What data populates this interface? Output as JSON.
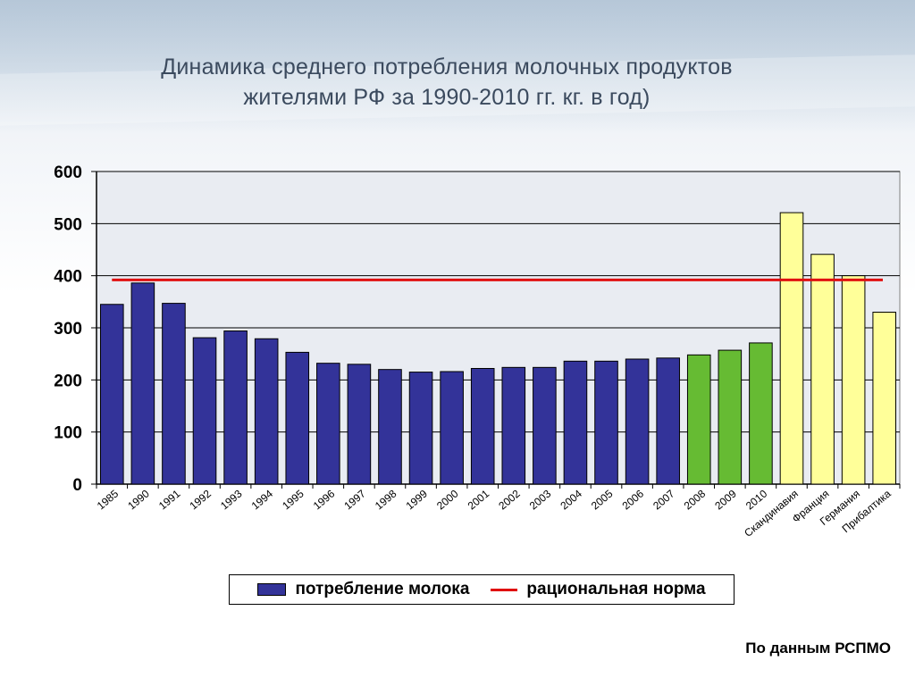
{
  "title_line1": "Динамика среднего потребления молочных продуктов",
  "title_line2": "жителями РФ за 1990-2010 гг. кг. в год)",
  "source": "По данным РСПМО",
  "legend": {
    "series_label": "потребление молока",
    "norm_label": "рациональная норма"
  },
  "chart_data": {
    "type": "bar",
    "title": "Динамика среднего потребления молочных продуктов жителями РФ за 1990-2010 гг. кг. в год)",
    "xlabel": "",
    "ylabel": "",
    "ylim": [
      0,
      600
    ],
    "yticks": [
      0,
      100,
      200,
      300,
      400,
      500,
      600
    ],
    "grid": true,
    "legend_position": "bottom",
    "categories": [
      "1985",
      "1990",
      "1991",
      "1992",
      "1993",
      "1994",
      "1995",
      "1996",
      "1997",
      "1998",
      "1999",
      "2000",
      "2001",
      "2002",
      "2003",
      "2004",
      "2005",
      "2006",
      "2007",
      "2008",
      "2009",
      "2010",
      "Скандинавия",
      "Франция",
      "Германия",
      "Прибалтика"
    ],
    "values": [
      345,
      386,
      347,
      281,
      294,
      279,
      253,
      232,
      230,
      220,
      215,
      216,
      222,
      224,
      224,
      236,
      236,
      240,
      242,
      248,
      257,
      271,
      521,
      441,
      400,
      330
    ],
    "bar_groups": [
      "russia",
      "russia",
      "russia",
      "russia",
      "russia",
      "russia",
      "russia",
      "russia",
      "russia",
      "russia",
      "russia",
      "russia",
      "russia",
      "russia",
      "russia",
      "russia",
      "russia",
      "russia",
      "russia",
      "recent",
      "recent",
      "recent",
      "foreign",
      "foreign",
      "foreign",
      "foreign"
    ],
    "colors": {
      "russia": "#333399",
      "recent": "#66bb33",
      "foreign": "#ffff99",
      "norm": "#e01010"
    },
    "series": [
      {
        "name": "потребление молока"
      }
    ],
    "reference_line": {
      "name": "рациональная норма",
      "value": 392
    }
  }
}
